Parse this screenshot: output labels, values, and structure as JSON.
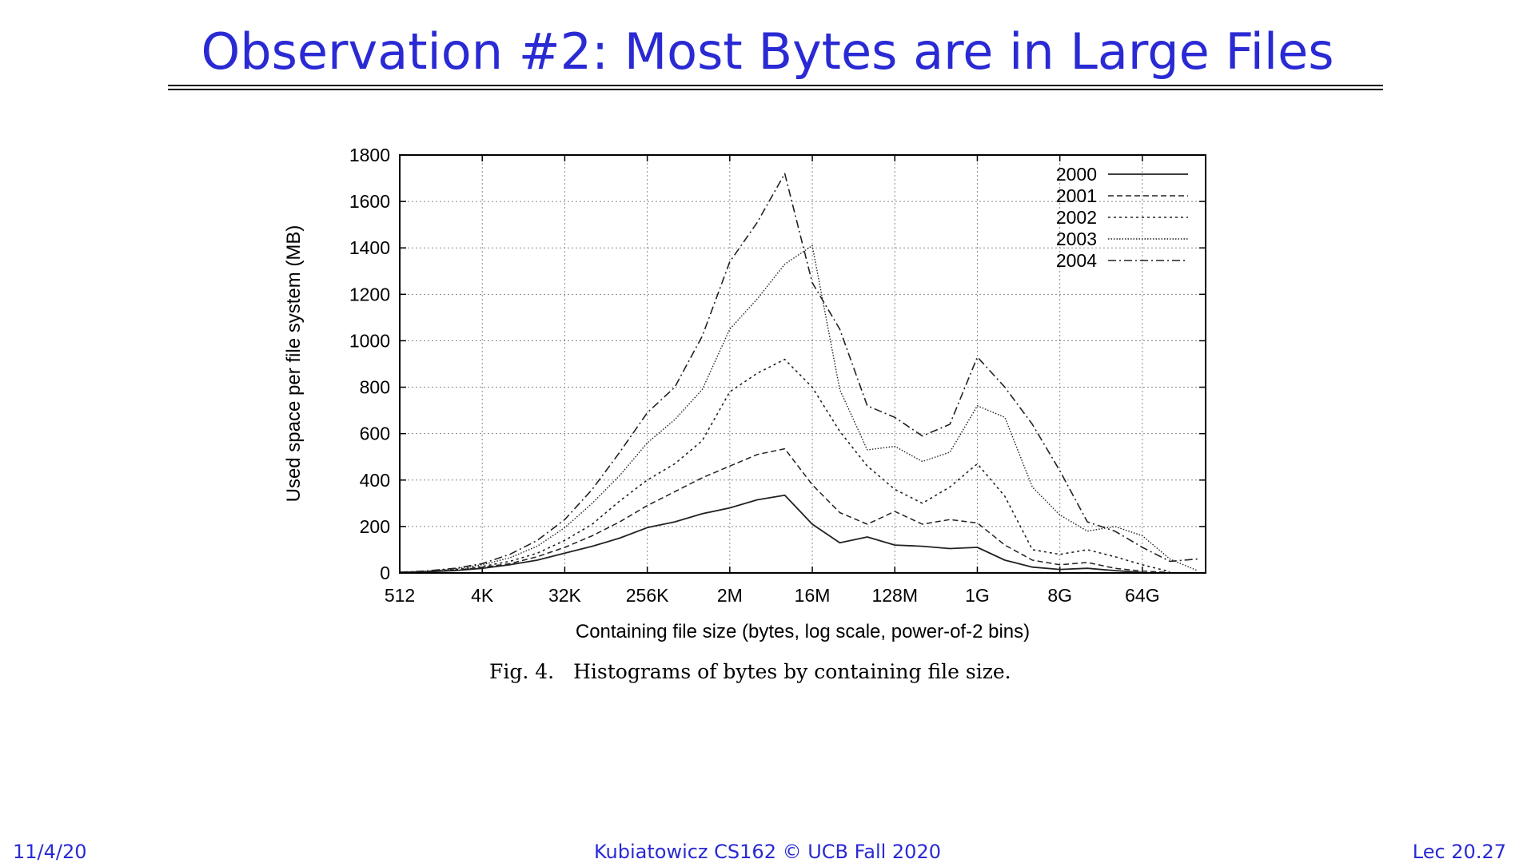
{
  "slide": {
    "title": "Observation #2: Most Bytes are in Large Files",
    "caption_fig": "Fig. 4.",
    "caption_text": "Histograms of bytes by containing file size.",
    "footer_left": "11/4/20",
    "footer_center": "Kubiatowicz CS162 © UCB Fall 2020",
    "footer_right": "Lec 20.27"
  },
  "chart_data": {
    "type": "line",
    "title": "",
    "xlabel": "Containing file size (bytes, log scale, power-of-2 bins)",
    "ylabel": "Used space per file system (MB)",
    "ylim": [
      0,
      1800
    ],
    "yticks": [
      0,
      200,
      400,
      600,
      800,
      1000,
      1200,
      1400,
      1600,
      1800
    ],
    "xticks": [
      "512",
      "4K",
      "32K",
      "256K",
      "2M",
      "16M",
      "128M",
      "1G",
      "8G",
      "64G"
    ],
    "x_scale": "log2",
    "x_range_log2": [
      9,
      38.3
    ],
    "grid": true,
    "legend_position": "top-right",
    "series": [
      {
        "name": "2000",
        "dash": "solid",
        "x_log2": [
          9,
          10,
          11,
          12,
          13,
          14,
          15,
          16,
          17,
          18,
          19,
          20,
          21,
          22,
          23,
          24,
          25,
          26,
          27,
          28,
          29,
          30,
          31,
          32,
          33,
          34,
          35,
          36
        ],
        "values": [
          2,
          5,
          10,
          20,
          35,
          55,
          85,
          115,
          150,
          195,
          220,
          255,
          280,
          315,
          335,
          210,
          130,
          155,
          120,
          115,
          105,
          110,
          55,
          25,
          15,
          20,
          10,
          2
        ]
      },
      {
        "name": "2001",
        "dash": "dashed",
        "x_log2": [
          9,
          10,
          11,
          12,
          13,
          14,
          15,
          16,
          17,
          18,
          19,
          20,
          21,
          22,
          23,
          24,
          25,
          26,
          27,
          28,
          29,
          30,
          31,
          32,
          33,
          34,
          35,
          36,
          37
        ],
        "values": [
          2,
          6,
          12,
          24,
          40,
          70,
          110,
          160,
          220,
          290,
          350,
          410,
          460,
          510,
          535,
          380,
          260,
          210,
          265,
          210,
          230,
          215,
          120,
          55,
          35,
          45,
          20,
          8,
          2
        ]
      },
      {
        "name": "2002",
        "dash": "dotted",
        "x_log2": [
          9,
          10,
          11,
          12,
          13,
          14,
          15,
          16,
          17,
          18,
          19,
          20,
          21,
          22,
          23,
          24,
          25,
          26,
          27,
          28,
          29,
          30,
          31,
          32,
          33,
          34,
          35,
          36,
          37
        ],
        "values": [
          2,
          7,
          14,
          28,
          50,
          85,
          140,
          210,
          310,
          400,
          470,
          570,
          780,
          860,
          920,
          800,
          610,
          460,
          360,
          300,
          370,
          470,
          330,
          100,
          80,
          100,
          70,
          35,
          5
        ]
      },
      {
        "name": "2003",
        "dash": "fine-dotted",
        "x_log2": [
          9,
          10,
          11,
          12,
          13,
          14,
          15,
          16,
          17,
          18,
          19,
          20,
          21,
          22,
          23,
          24,
          25,
          26,
          27,
          28,
          29,
          30,
          31,
          32,
          33,
          34,
          35,
          36,
          37,
          38
        ],
        "values": [
          3,
          8,
          18,
          35,
          65,
          115,
          195,
          300,
          420,
          560,
          660,
          790,
          1050,
          1180,
          1330,
          1410,
          790,
          530,
          545,
          480,
          520,
          720,
          670,
          370,
          250,
          180,
          200,
          160,
          60,
          10
        ]
      },
      {
        "name": "2004",
        "dash": "dash-dot",
        "x_log2": [
          9,
          10,
          11,
          12,
          13,
          14,
          15,
          16,
          17,
          18,
          19,
          20,
          21,
          22,
          23,
          24,
          25,
          26,
          27,
          28,
          29,
          30,
          31,
          32,
          33,
          34,
          35,
          36,
          37,
          38
        ],
        "values": [
          3,
          9,
          20,
          40,
          80,
          140,
          230,
          360,
          520,
          690,
          800,
          1020,
          1340,
          1510,
          1720,
          1250,
          1050,
          720,
          670,
          590,
          640,
          930,
          800,
          640,
          440,
          220,
          180,
          110,
          50,
          60
        ]
      }
    ]
  }
}
